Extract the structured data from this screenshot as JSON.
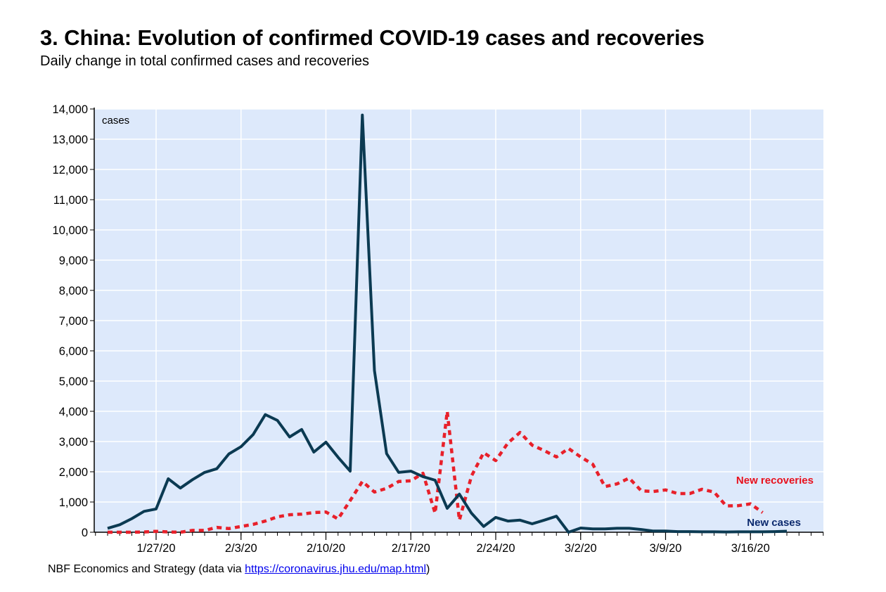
{
  "header": {
    "title": "3. China: Evolution of confirmed COVID-19 cases and recoveries",
    "subtitle": "Daily change in total confirmed cases and recoveries"
  },
  "footer": {
    "source_prefix": "NBF Economics and Strategy (data via ",
    "source_link": "https://coronavirus.jhu.edu/map.html",
    "source_suffix": ")"
  },
  "chart_data": {
    "type": "line",
    "title": "3. China: Evolution of confirmed COVID-19 cases and recoveries",
    "subtitle": "Daily change in total confirmed cases and recoveries",
    "xlabel": "",
    "ylabel": "cases",
    "ylim": [
      0,
      14000
    ],
    "yticks": [
      0,
      1000,
      2000,
      3000,
      4000,
      5000,
      6000,
      7000,
      8000,
      9000,
      10000,
      11000,
      12000,
      13000,
      14000
    ],
    "ytick_labels": [
      "0",
      "1,000",
      "2,000",
      "3,000",
      "4,000",
      "5,000",
      "6,000",
      "7,000",
      "8,000",
      "9,000",
      "10,000",
      "11,000",
      "12,000",
      "13,000",
      "14,000"
    ],
    "x_start_date": "2020-01-23",
    "x_axis_start_date": "2020-01-22",
    "x_axis_end_date": "2020-03-23",
    "xtick_labels": [
      "1/27/20",
      "2/3/20",
      "2/10/20",
      "2/17/20",
      "2/24/20",
      "3/2/20",
      "3/9/20",
      "3/16/20"
    ],
    "xtick_dates": [
      "2020-01-27",
      "2020-02-03",
      "2020-02-10",
      "2020-02-17",
      "2020-02-24",
      "2020-03-02",
      "2020-03-09",
      "2020-03-16"
    ],
    "grid": true,
    "colors": {
      "background": "#dde9fb",
      "grid": "#ffffff",
      "new_cases": "#0b3a52",
      "new_recoveries": "#e8202a"
    },
    "series": [
      {
        "name": "New cases",
        "style": "solid",
        "label_color": "#0c2a6e",
        "values": [
          130,
          250,
          450,
          690,
          770,
          1770,
          1460,
          1740,
          1980,
          2100,
          2590,
          2830,
          3230,
          3890,
          3700,
          3150,
          3400,
          2650,
          2980,
          2480,
          2020,
          13800,
          5350,
          2600,
          1980,
          2020,
          1840,
          1720,
          790,
          1260,
          630,
          190,
          490,
          370,
          400,
          280,
          400,
          530,
          0,
          140,
          110,
          110,
          130,
          130,
          90,
          40,
          40,
          20,
          20,
          15,
          15,
          10,
          15,
          15,
          15,
          20,
          35
        ]
      },
      {
        "name": "New recoveries",
        "style": "dotted",
        "label_color": "#e8101c",
        "values": [
          0,
          0,
          0,
          10,
          30,
          10,
          0,
          60,
          60,
          160,
          120,
          190,
          260,
          370,
          510,
          580,
          600,
          650,
          670,
          440,
          1050,
          1680,
          1330,
          1450,
          1680,
          1700,
          1950,
          630,
          4000,
          400,
          1860,
          2630,
          2370,
          2950,
          3300,
          2880,
          2700,
          2490,
          2770,
          2490,
          2250,
          1510,
          1600,
          1790,
          1370,
          1350,
          1400,
          1280,
          1280,
          1420,
          1330,
          870,
          880,
          940,
          650
        ]
      }
    ],
    "annotations": [
      {
        "text": "cases",
        "position": "top-left"
      },
      {
        "text": "New recoveries",
        "position": "right",
        "series": "New recoveries"
      },
      {
        "text": "New cases",
        "position": "bottom-right",
        "series": "New cases"
      }
    ]
  }
}
